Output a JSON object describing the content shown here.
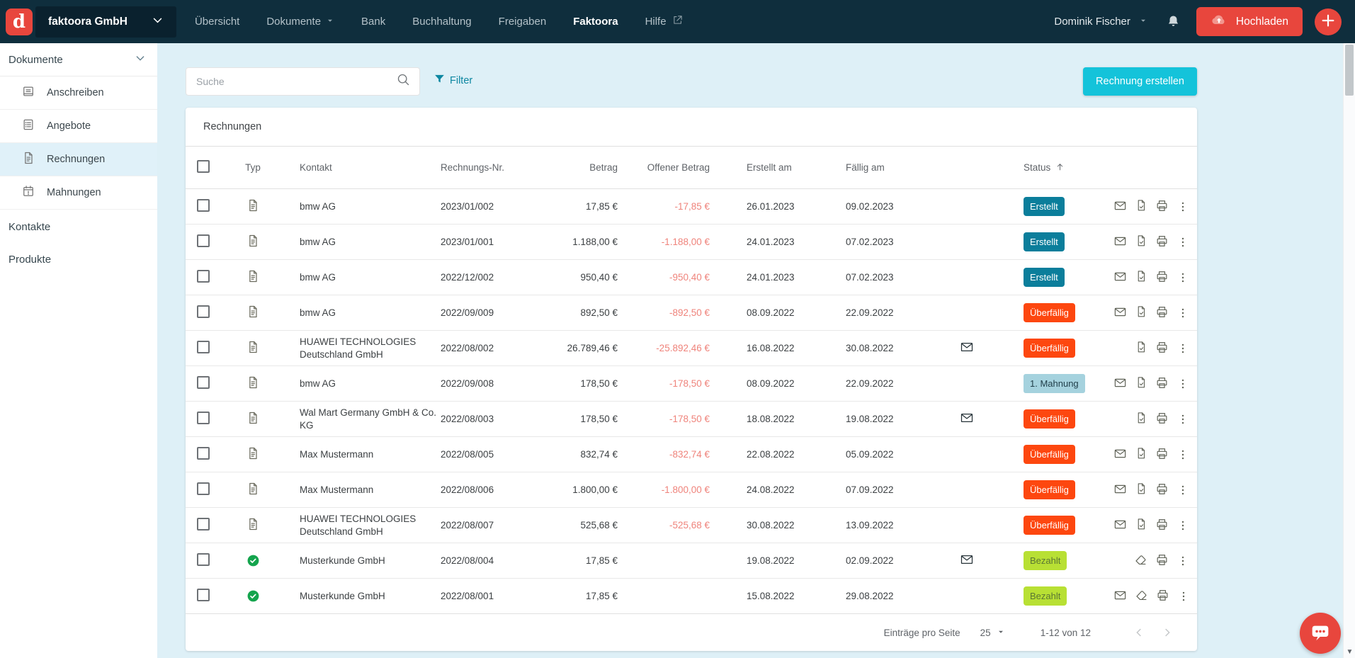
{
  "topbar": {
    "logo_letter": "d",
    "company_selector": "faktoora GmbH",
    "nav_items": [
      {
        "label": "Übersicht",
        "dropdown": false,
        "active": false,
        "external": false
      },
      {
        "label": "Dokumente",
        "dropdown": true,
        "active": false,
        "external": false
      },
      {
        "label": "Bank",
        "dropdown": false,
        "active": false,
        "external": false
      },
      {
        "label": "Buchhaltung",
        "dropdown": false,
        "active": false,
        "external": false
      },
      {
        "label": "Freigaben",
        "dropdown": false,
        "active": false,
        "external": false
      },
      {
        "label": "Faktoora",
        "dropdown": false,
        "active": true,
        "external": false
      },
      {
        "label": "Hilfe",
        "dropdown": false,
        "active": false,
        "external": true
      }
    ],
    "user_name": "Dominik Fischer",
    "bell_icon": "bell-icon",
    "upload_button": "Hochladen",
    "plus_button": "plus-icon"
  },
  "sidebar": {
    "section_label": "Dokumente",
    "items": [
      {
        "label": "Anschreiben",
        "icon": "letter-icon",
        "active": false
      },
      {
        "label": "Angebote",
        "icon": "offer-icon",
        "active": false
      },
      {
        "label": "Rechnungen",
        "icon": "invoice-icon",
        "active": true
      },
      {
        "label": "Mahnungen",
        "icon": "reminder-icon",
        "active": false
      }
    ],
    "bottom_links": [
      "Kontakte",
      "Produkte"
    ]
  },
  "toolbar": {
    "search_placeholder": "Suche",
    "search_value": "",
    "search_icon": "search-icon",
    "filter_icon": "funnel-icon",
    "filter_label": "Filter",
    "create_button": "Rechnung erstellen"
  },
  "table": {
    "title": "Rechnungen",
    "columns": {
      "typ": "Typ",
      "kontakt": "Kontakt",
      "nr": "Rechnungs-Nr.",
      "betrag": "Betrag",
      "offener": "Offener Betrag",
      "erstellt": "Erstellt am",
      "faellig": "Fällig am",
      "status": "Status"
    },
    "sort_icon": "arrow-up-icon",
    "rows": [
      {
        "typ_icon": "document-icon",
        "kontakt": "bmw AG",
        "nr": "2023/01/002",
        "betrag": "17,85 €",
        "offener": "-17,85 €",
        "erstellt": "26.01.2023",
        "faellig": "09.02.2023",
        "sent": false,
        "status": "Erstellt",
        "status_kind": "erstellt",
        "actions": [
          "mail-icon",
          "file-check-icon",
          "printer-icon",
          "more-icon"
        ]
      },
      {
        "typ_icon": "document-icon",
        "kontakt": "bmw AG",
        "nr": "2023/01/001",
        "betrag": "1.188,00 €",
        "offener": "-1.188,00 €",
        "erstellt": "24.01.2023",
        "faellig": "07.02.2023",
        "sent": false,
        "status": "Erstellt",
        "status_kind": "erstellt",
        "actions": [
          "mail-icon",
          "file-check-icon",
          "printer-icon",
          "more-icon"
        ]
      },
      {
        "typ_icon": "document-icon",
        "kontakt": "bmw AG",
        "nr": "2022/12/002",
        "betrag": "950,40 €",
        "offener": "-950,40 €",
        "erstellt": "24.01.2023",
        "faellig": "07.02.2023",
        "sent": false,
        "status": "Erstellt",
        "status_kind": "erstellt",
        "actions": [
          "mail-icon",
          "file-check-icon",
          "printer-icon",
          "more-icon"
        ]
      },
      {
        "typ_icon": "document-icon",
        "kontakt": "bmw AG",
        "nr": "2022/09/009",
        "betrag": "892,50 €",
        "offener": "-892,50 €",
        "erstellt": "08.09.2022",
        "faellig": "22.09.2022",
        "sent": false,
        "status": "Überfällig",
        "status_kind": "ueberfaellig",
        "actions": [
          "mail-icon",
          "file-check-icon",
          "printer-icon",
          "more-icon"
        ]
      },
      {
        "typ_icon": "document-icon",
        "kontakt": "HUAWEI TECHNOLOGIES Deutschland GmbH",
        "nr": "2022/08/002",
        "betrag": "26.789,46 €",
        "offener": "-25.892,46 €",
        "erstellt": "16.08.2022",
        "faellig": "30.08.2022",
        "sent": true,
        "status": "Überfällig",
        "status_kind": "ueberfaellig",
        "actions": [
          "file-check-icon",
          "printer-icon",
          "more-icon"
        ]
      },
      {
        "typ_icon": "document-icon",
        "kontakt": "bmw AG",
        "nr": "2022/09/008",
        "betrag": "178,50 €",
        "offener": "-178,50 €",
        "erstellt": "08.09.2022",
        "faellig": "22.09.2022",
        "sent": false,
        "status": "1. Mahnung",
        "status_kind": "mahnung",
        "actions": [
          "mail-icon",
          "file-check-icon",
          "printer-icon",
          "more-icon"
        ]
      },
      {
        "typ_icon": "document-icon",
        "kontakt": "Wal Mart Germany GmbH & Co. KG",
        "nr": "2022/08/003",
        "betrag": "178,50 €",
        "offener": "-178,50 €",
        "erstellt": "18.08.2022",
        "faellig": "19.08.2022",
        "sent": true,
        "status": "Überfällig",
        "status_kind": "ueberfaellig",
        "actions": [
          "file-check-icon",
          "printer-icon",
          "more-icon"
        ]
      },
      {
        "typ_icon": "document-icon",
        "kontakt": "Max Mustermann",
        "nr": "2022/08/005",
        "betrag": "832,74 €",
        "offener": "-832,74 €",
        "erstellt": "22.08.2022",
        "faellig": "05.09.2022",
        "sent": false,
        "status": "Überfällig",
        "status_kind": "ueberfaellig",
        "actions": [
          "mail-icon",
          "file-check-icon",
          "printer-icon",
          "more-icon"
        ]
      },
      {
        "typ_icon": "document-icon",
        "kontakt": "Max Mustermann",
        "nr": "2022/08/006",
        "betrag": "1.800,00 €",
        "offener": "-1.800,00 €",
        "erstellt": "24.08.2022",
        "faellig": "07.09.2022",
        "sent": false,
        "status": "Überfällig",
        "status_kind": "ueberfaellig",
        "actions": [
          "mail-icon",
          "file-check-icon",
          "printer-icon",
          "more-icon"
        ]
      },
      {
        "typ_icon": "document-icon",
        "kontakt": "HUAWEI TECHNOLOGIES Deutschland GmbH",
        "nr": "2022/08/007",
        "betrag": "525,68 €",
        "offener": "-525,68 €",
        "erstellt": "30.08.2022",
        "faellig": "13.09.2022",
        "sent": false,
        "status": "Überfällig",
        "status_kind": "ueberfaellig",
        "actions": [
          "mail-icon",
          "file-check-icon",
          "printer-icon",
          "more-icon"
        ]
      },
      {
        "typ_icon": "check-circle-icon",
        "kontakt": "Musterkunde GmbH",
        "nr": "2022/08/004",
        "betrag": "17,85 €",
        "offener": "",
        "erstellt": "19.08.2022",
        "faellig": "02.09.2022",
        "sent": true,
        "status": "Bezahlt",
        "status_kind": "bezahlt",
        "actions": [
          "eraser-icon",
          "printer-icon",
          "more-icon"
        ]
      },
      {
        "typ_icon": "check-circle-icon",
        "kontakt": "Musterkunde GmbH",
        "nr": "2022/08/001",
        "betrag": "17,85 €",
        "offener": "",
        "erstellt": "15.08.2022",
        "faellig": "29.08.2022",
        "sent": false,
        "status": "Bezahlt",
        "status_kind": "bezahlt",
        "actions": [
          "mail-icon",
          "eraser-icon",
          "printer-icon",
          "more-icon"
        ]
      }
    ]
  },
  "pagination": {
    "per_page_label": "Einträge pro Seite",
    "per_page_value": "25",
    "range_label": "1-12 von 12"
  },
  "colors": {
    "topbar_bg": "#0f2e3d",
    "accent_red": "#e8463d",
    "accent_cyan": "#14c3da",
    "filter_teal": "#0d87a1",
    "status_erstellt": "#0b7e9b",
    "status_ueberfaellig": "#fd470f",
    "status_bezahlt_bg": "#b8e034",
    "status_mahnung_bg": "#a5d2de",
    "negative_amount": "#ef837b",
    "main_bg": "#def0f7",
    "paid_check_green": "#14a44d"
  }
}
